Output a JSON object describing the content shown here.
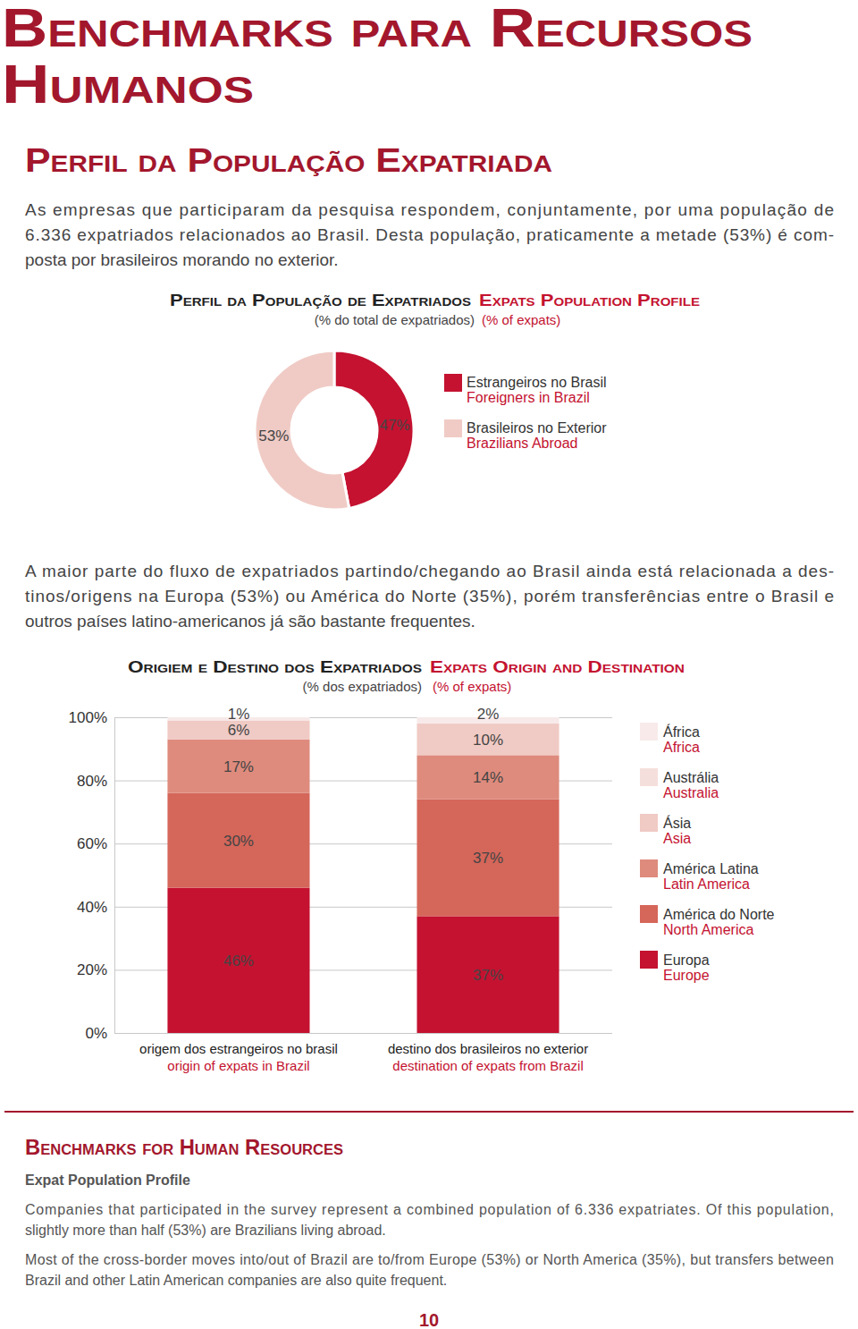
{
  "header": {
    "title_lines": [
      "Benchmarks para Recursos",
      "Humanos"
    ],
    "section_title": "Perfil da População Expatriada",
    "intro_lines": [
      "As empresas que participaram da pesquisa respondem, conjuntamente, por uma população de",
      "6.336 expatriados relacionados ao Brasil. Desta população, praticamente a metade (53%) é com-",
      "posta por brasileiros morando no exterior."
    ],
    "flow_lines": [
      "A maior parte do fluxo de expatriados partindo/chegando ao Brasil ainda está relacionada a des-",
      "tinos/origens na Europa (53%) ou América do Norte (35%), porém transferências entre o Brasil e",
      "outros países latino-americanos já são bastante frequentes."
    ]
  },
  "chart_data": [
    {
      "type": "pie",
      "title": "Perfil da População de Expatriados",
      "title_en": "Expats Population Profile",
      "subtitle": "(% do total de expatriados)",
      "subtitle_en": "(% of expats)",
      "categories": [
        "Estrangeiros no Brasil",
        "Brasileiros no Exterior"
      ],
      "categories_en": [
        "Foreigners in Brazil",
        "Brazilians Abroad"
      ],
      "values": [
        47,
        53
      ],
      "value_labels": [
        "47%",
        "53%"
      ],
      "colors": [
        "#c41230",
        "#f0cbc5"
      ],
      "data_labels": true,
      "legend": "right"
    },
    {
      "type": "bar",
      "stacked": true,
      "title": "Origiem e Destino dos Expatriados",
      "title_en": "Expats Origin and Destination",
      "subtitle": "(% dos expatriados)",
      "subtitle_en": "(% of expats)",
      "categories": [
        "origem dos estrangeiros no brasil",
        "destino dos brasileiros no exterior"
      ],
      "categories_en": [
        "origin of expats in Brazil",
        "destination of expats from Brazil"
      ],
      "series": [
        {
          "name": "Europa",
          "name_en": "Europe",
          "color": "#c41230",
          "values": [
            46,
            37
          ],
          "value_labels": [
            "46%",
            "37%"
          ]
        },
        {
          "name": "América do Norte",
          "name_en": "North America",
          "color": "#d5665a",
          "values": [
            30,
            37
          ],
          "value_labels": [
            "30%",
            "37%"
          ]
        },
        {
          "name": "América Latina",
          "name_en": "Latin America",
          "color": "#de8b7d",
          "values": [
            17,
            14
          ],
          "value_labels": [
            "17%",
            "14%"
          ]
        },
        {
          "name": "Ásia",
          "name_en": "Asia",
          "color": "#f0cac4",
          "values": [
            6,
            10
          ],
          "value_labels": [
            "6%",
            "10%"
          ]
        },
        {
          "name": "Austrália",
          "name_en": "Australia",
          "color": "#f5dfdc",
          "values": [
            0,
            0
          ],
          "value_labels": [
            null,
            null
          ]
        },
        {
          "name": "África",
          "name_en": "Africa",
          "color": "#f8eaea",
          "values": [
            1,
            2
          ],
          "value_labels": [
            "1%",
            "2%"
          ]
        }
      ],
      "ylim": [
        0,
        100
      ],
      "yticks": [
        {
          "value": 0,
          "label": "0%"
        },
        {
          "value": 20,
          "label": "20%"
        },
        {
          "value": 40,
          "label": "40%"
        },
        {
          "value": 60,
          "label": "60%"
        },
        {
          "value": 80,
          "label": "80%"
        },
        {
          "value": 100,
          "label": "100%"
        }
      ],
      "grid": true,
      "data_labels": true,
      "legend": "right"
    }
  ],
  "footer": {
    "title": "Benchmarks for Human Resources",
    "subtitle": "Expat Population Profile",
    "paragraphs": [
      [
        "Companies that participated in the survey represent a combined population of 6.336 expatriates. Of this population,",
        "slightly more than half (53%) are Brazilians living abroad."
      ],
      [
        "Most of the cross-border moves into/out of Brazil are to/from Europe (53%) or North America (35%), but transfers between",
        "Brazil and other Latin American companies are also quite frequent."
      ]
    ],
    "page_number": "10"
  }
}
